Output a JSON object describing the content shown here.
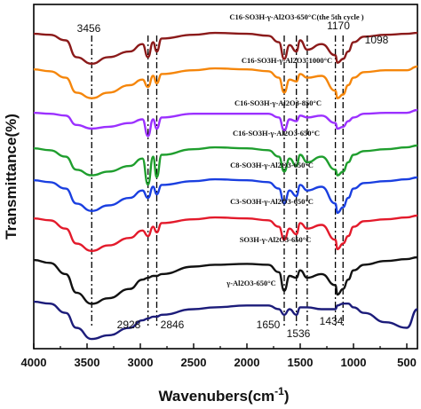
{
  "chart_data": {
    "type": "line",
    "title": "",
    "xlabel": "Wavenubers(cm",
    "xlabel_sup": "-1",
    "ylabel": "Transmittance(%)",
    "xlim": [
      4000,
      400
    ],
    "x_reversed": true,
    "x_ticks": [
      "4000",
      "3500",
      "3000",
      "2500",
      "2000",
      "1500",
      "1000",
      "500"
    ],
    "grid": false,
    "legend": "labels above each curve",
    "series": [
      {
        "name": "C16-SO3H-γ-Al2O3-650°C(the 5th cycle )",
        "color": "#8B1A1A",
        "offset": 0,
        "points": [
          [
            4000,
            3
          ],
          [
            3850,
            4
          ],
          [
            3700,
            10
          ],
          [
            3600,
            28
          ],
          [
            3456,
            35
          ],
          [
            3300,
            28
          ],
          [
            3100,
            22
          ],
          [
            2980,
            14
          ],
          [
            2928,
            28
          ],
          [
            2880,
            12
          ],
          [
            2846,
            22
          ],
          [
            2800,
            8
          ],
          [
            2500,
            4
          ],
          [
            2300,
            2
          ],
          [
            2000,
            3
          ],
          [
            1800,
            5
          ],
          [
            1700,
            12
          ],
          [
            1650,
            30
          ],
          [
            1600,
            15
          ],
          [
            1536,
            22
          ],
          [
            1500,
            10
          ],
          [
            1434,
            20
          ],
          [
            1300,
            14
          ],
          [
            1170,
            26
          ],
          [
            1150,
            34
          ],
          [
            1098,
            30
          ],
          [
            1050,
            22
          ],
          [
            1000,
            12
          ],
          [
            900,
            6
          ],
          [
            700,
            4
          ],
          [
            500,
            3
          ],
          [
            400,
            2
          ]
        ]
      },
      {
        "name": "C16-SO3H-γ-Al2O3-1000°C",
        "color": "#F5860B",
        "offset": 0,
        "points": [
          [
            4000,
            3
          ],
          [
            3850,
            5
          ],
          [
            3700,
            12
          ],
          [
            3600,
            28
          ],
          [
            3456,
            34
          ],
          [
            3300,
            28
          ],
          [
            3100,
            20
          ],
          [
            2980,
            14
          ],
          [
            2928,
            22
          ],
          [
            2880,
            10
          ],
          [
            2846,
            18
          ],
          [
            2800,
            8
          ],
          [
            2500,
            4
          ],
          [
            2300,
            2
          ],
          [
            2000,
            3
          ],
          [
            1800,
            5
          ],
          [
            1700,
            12
          ],
          [
            1650,
            28
          ],
          [
            1600,
            14
          ],
          [
            1536,
            16
          ],
          [
            1500,
            8
          ],
          [
            1434,
            12
          ],
          [
            1300,
            10
          ],
          [
            1170,
            26
          ],
          [
            1150,
            34
          ],
          [
            1098,
            30
          ],
          [
            1050,
            20
          ],
          [
            1000,
            12
          ],
          [
            900,
            6
          ],
          [
            700,
            4
          ],
          [
            500,
            4
          ],
          [
            400,
            0
          ]
        ]
      },
      {
        "name": "C16-SO3H-γ-Al2O3-850°C",
        "color": "#9B30FF",
        "offset": 0,
        "points": [
          [
            4000,
            3
          ],
          [
            3850,
            4
          ],
          [
            3700,
            6
          ],
          [
            3600,
            16
          ],
          [
            3456,
            20
          ],
          [
            3300,
            18
          ],
          [
            3100,
            14
          ],
          [
            2980,
            10
          ],
          [
            2928,
            28
          ],
          [
            2880,
            10
          ],
          [
            2846,
            20
          ],
          [
            2800,
            8
          ],
          [
            2500,
            4
          ],
          [
            2300,
            4
          ],
          [
            2000,
            4
          ],
          [
            1800,
            4
          ],
          [
            1700,
            8
          ],
          [
            1650,
            22
          ],
          [
            1600,
            10
          ],
          [
            1536,
            12
          ],
          [
            1500,
            6
          ],
          [
            1434,
            8
          ],
          [
            1300,
            6
          ],
          [
            1170,
            14
          ],
          [
            1150,
            20
          ],
          [
            1098,
            18
          ],
          [
            1050,
            12
          ],
          [
            1000,
            8
          ],
          [
            900,
            4
          ],
          [
            700,
            3
          ],
          [
            500,
            3
          ],
          [
            400,
            0
          ]
        ]
      },
      {
        "name": "C16-SO3H-γ-Al2O3-650°C",
        "color": "#1F9E2E",
        "offset": 0,
        "points": [
          [
            4000,
            3
          ],
          [
            3850,
            5
          ],
          [
            3700,
            12
          ],
          [
            3600,
            26
          ],
          [
            3456,
            32
          ],
          [
            3300,
            28
          ],
          [
            3100,
            22
          ],
          [
            2980,
            14
          ],
          [
            2928,
            42
          ],
          [
            2880,
            12
          ],
          [
            2846,
            34
          ],
          [
            2800,
            10
          ],
          [
            2500,
            4
          ],
          [
            2300,
            2
          ],
          [
            2000,
            3
          ],
          [
            1800,
            5
          ],
          [
            1700,
            12
          ],
          [
            1650,
            28
          ],
          [
            1600,
            14
          ],
          [
            1536,
            22
          ],
          [
            1500,
            10
          ],
          [
            1434,
            18
          ],
          [
            1300,
            12
          ],
          [
            1170,
            26
          ],
          [
            1150,
            32
          ],
          [
            1098,
            28
          ],
          [
            1050,
            18
          ],
          [
            1000,
            10
          ],
          [
            900,
            6
          ],
          [
            700,
            4
          ],
          [
            500,
            2
          ],
          [
            400,
            0
          ]
        ]
      },
      {
        "name": "C8-SO3H-γ-Al2O3-650°C",
        "color": "#1A3FE0",
        "offset": 0,
        "points": [
          [
            4000,
            3
          ],
          [
            3850,
            5
          ],
          [
            3700,
            12
          ],
          [
            3600,
            28
          ],
          [
            3456,
            36
          ],
          [
            3300,
            30
          ],
          [
            3100,
            22
          ],
          [
            2980,
            14
          ],
          [
            2928,
            22
          ],
          [
            2880,
            10
          ],
          [
            2846,
            18
          ],
          [
            2800,
            8
          ],
          [
            2500,
            4
          ],
          [
            2300,
            2
          ],
          [
            2000,
            3
          ],
          [
            1800,
            5
          ],
          [
            1700,
            12
          ],
          [
            1650,
            28
          ],
          [
            1600,
            14
          ],
          [
            1536,
            20
          ],
          [
            1500,
            8
          ],
          [
            1434,
            14
          ],
          [
            1300,
            10
          ],
          [
            1170,
            28
          ],
          [
            1150,
            38
          ],
          [
            1098,
            32
          ],
          [
            1050,
            22
          ],
          [
            1000,
            12
          ],
          [
            900,
            6
          ],
          [
            700,
            4
          ],
          [
            500,
            2
          ],
          [
            400,
            0
          ]
        ]
      },
      {
        "name": "C3-SO3H-γ-Al2O3-650°C",
        "color": "#E31A2B",
        "offset": 0,
        "points": [
          [
            4000,
            3
          ],
          [
            3850,
            5
          ],
          [
            3700,
            14
          ],
          [
            3600,
            30
          ],
          [
            3456,
            38
          ],
          [
            3300,
            32
          ],
          [
            3100,
            24
          ],
          [
            2980,
            16
          ],
          [
            2928,
            22
          ],
          [
            2880,
            12
          ],
          [
            2846,
            18
          ],
          [
            2800,
            8
          ],
          [
            2500,
            4
          ],
          [
            2300,
            2
          ],
          [
            2000,
            3
          ],
          [
            1800,
            5
          ],
          [
            1700,
            12
          ],
          [
            1650,
            26
          ],
          [
            1600,
            14
          ],
          [
            1536,
            20
          ],
          [
            1500,
            8
          ],
          [
            1434,
            14
          ],
          [
            1300,
            10
          ],
          [
            1170,
            26
          ],
          [
            1150,
            36
          ],
          [
            1098,
            30
          ],
          [
            1050,
            22
          ],
          [
            1000,
            12
          ],
          [
            900,
            6
          ],
          [
            700,
            4
          ],
          [
            500,
            2
          ],
          [
            400,
            0
          ]
        ]
      },
      {
        "name": "SO3H-γ-Al2O3-650°C",
        "color": "#111111",
        "offset": 0,
        "points": [
          [
            4000,
            3
          ],
          [
            3850,
            6
          ],
          [
            3700,
            18
          ],
          [
            3600,
            38
          ],
          [
            3456,
            50
          ],
          [
            3300,
            44
          ],
          [
            3100,
            34
          ],
          [
            2980,
            24
          ],
          [
            2928,
            22
          ],
          [
            2880,
            20
          ],
          [
            2846,
            20
          ],
          [
            2800,
            18
          ],
          [
            2500,
            10
          ],
          [
            2300,
            8
          ],
          [
            2000,
            7
          ],
          [
            1800,
            8
          ],
          [
            1700,
            16
          ],
          [
            1650,
            36
          ],
          [
            1600,
            20
          ],
          [
            1536,
            22
          ],
          [
            1500,
            14
          ],
          [
            1434,
            22
          ],
          [
            1300,
            18
          ],
          [
            1170,
            30
          ],
          [
            1150,
            40
          ],
          [
            1098,
            34
          ],
          [
            1050,
            24
          ],
          [
            1000,
            14
          ],
          [
            900,
            8
          ],
          [
            700,
            4
          ],
          [
            500,
            2
          ],
          [
            400,
            0
          ]
        ]
      },
      {
        "name": "γ-Al2O3-650°C",
        "color": "#1C1C7A",
        "offset": 0,
        "points": [
          [
            4000,
            2
          ],
          [
            3850,
            4
          ],
          [
            3700,
            14
          ],
          [
            3600,
            30
          ],
          [
            3456,
            42
          ],
          [
            3300,
            38
          ],
          [
            3100,
            30
          ],
          [
            2980,
            22
          ],
          [
            2928,
            20
          ],
          [
            2880,
            18
          ],
          [
            2846,
            18
          ],
          [
            2800,
            16
          ],
          [
            2500,
            10
          ],
          [
            2300,
            8
          ],
          [
            2000,
            6
          ],
          [
            1800,
            6
          ],
          [
            1700,
            10
          ],
          [
            1650,
            16
          ],
          [
            1600,
            10
          ],
          [
            1536,
            16
          ],
          [
            1500,
            8
          ],
          [
            1434,
            8
          ],
          [
            1300,
            10
          ],
          [
            1170,
            10
          ],
          [
            1150,
            6
          ],
          [
            1098,
            4
          ],
          [
            1050,
            4
          ],
          [
            1000,
            8
          ],
          [
            900,
            14
          ],
          [
            700,
            24
          ],
          [
            500,
            30
          ],
          [
            400,
            10
          ]
        ]
      }
    ],
    "peak_labels": [
      {
        "text": "3456",
        "x": 3456
      },
      {
        "text": "2928",
        "x": 2928
      },
      {
        "text": "2846",
        "x": 2846
      },
      {
        "text": "1650",
        "x": 1650
      },
      {
        "text": "1536",
        "x": 1536
      },
      {
        "text": "1434",
        "x": 1434
      },
      {
        "text": "1170",
        "x": 1170
      },
      {
        "text": "1098",
        "x": 1098
      }
    ],
    "reference_lines_x": [
      3456,
      2928,
      2846,
      1650,
      1536,
      1434,
      1170,
      1098
    ]
  }
}
